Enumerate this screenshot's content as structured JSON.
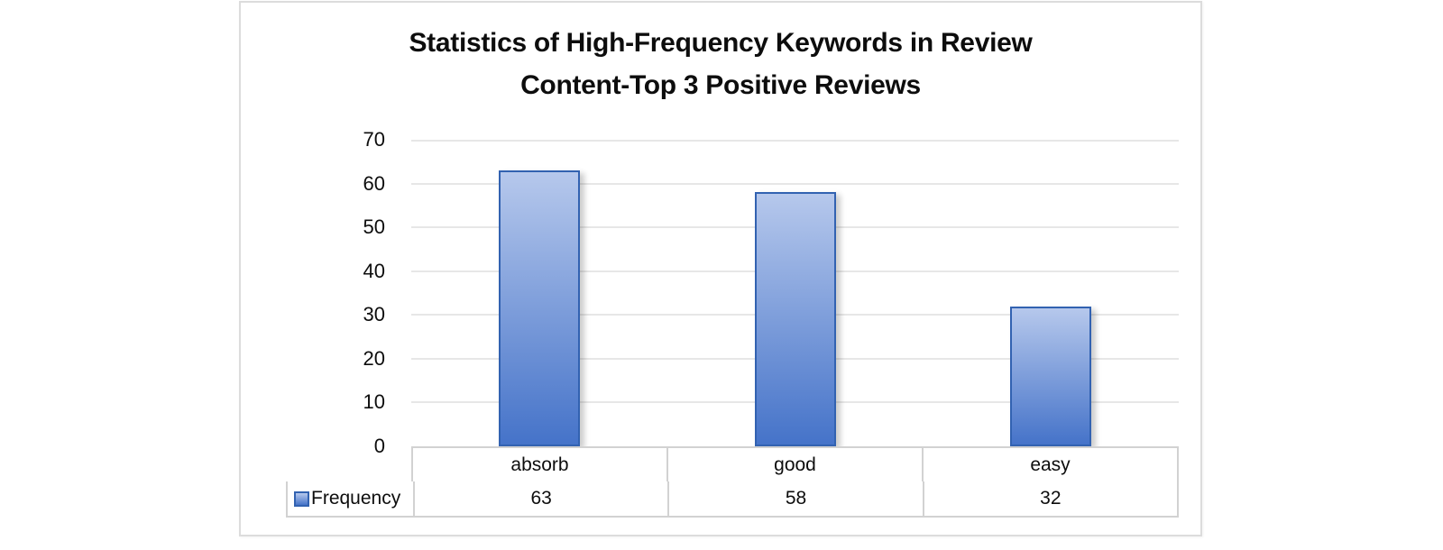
{
  "chart_data": {
    "type": "bar",
    "title": "Statistics of High-Frequency Keywords in Review Content-Top 3 Positive Reviews",
    "title_lines": {
      "line1": "Statistics of High-Frequency Keywords in Review",
      "line2": "Content-Top 3 Positive Reviews"
    },
    "categories": [
      "absorb",
      "good",
      "easy"
    ],
    "series": [
      {
        "name": "Frequency",
        "values": [
          63,
          58,
          32
        ]
      }
    ],
    "xlabel": "",
    "ylabel": "",
    "ylim": [
      0,
      70
    ],
    "ytick_interval": 10,
    "yticks": [
      70,
      60,
      50,
      40,
      30,
      20,
      10,
      0
    ],
    "grid": true,
    "legend_position": "data-table-left",
    "data_table_shown": true,
    "colors": {
      "bar_fill_top": "#b6c8ec",
      "bar_fill_bottom": "#4573c9",
      "bar_border": "#3262b1",
      "gridline": "#e7e7e7",
      "table_border": "#d2d2d2",
      "frame_border": "#dcdcdc",
      "text": "#0d0d0d",
      "background": "#ffffff"
    }
  }
}
